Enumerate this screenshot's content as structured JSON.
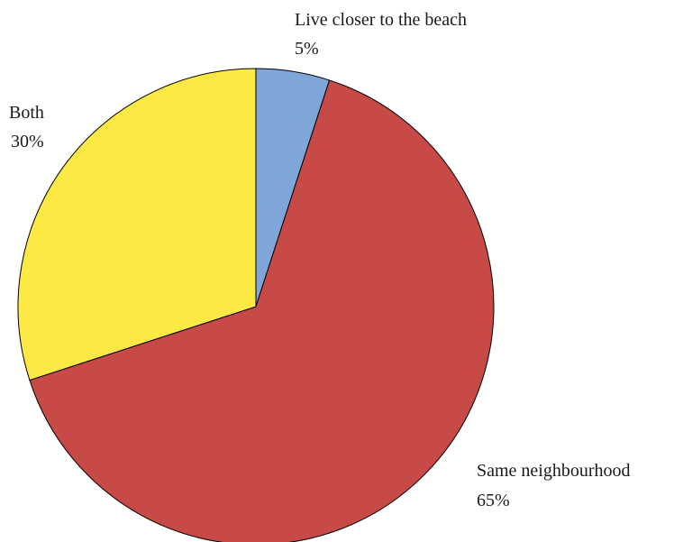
{
  "chart_data": {
    "type": "pie",
    "title": "",
    "start_angle_deg": 0,
    "direction": "clockwise",
    "slices": [
      {
        "label": "Live closer to the beach",
        "value": 5,
        "value_label": "5%",
        "color": "#7ea6d9"
      },
      {
        "label": "Same neighbourhood",
        "value": 65,
        "value_label": "65%",
        "color": "#c84a47"
      },
      {
        "label": "Both",
        "value": 30,
        "value_label": "30%",
        "color": "#fde944"
      }
    ]
  }
}
